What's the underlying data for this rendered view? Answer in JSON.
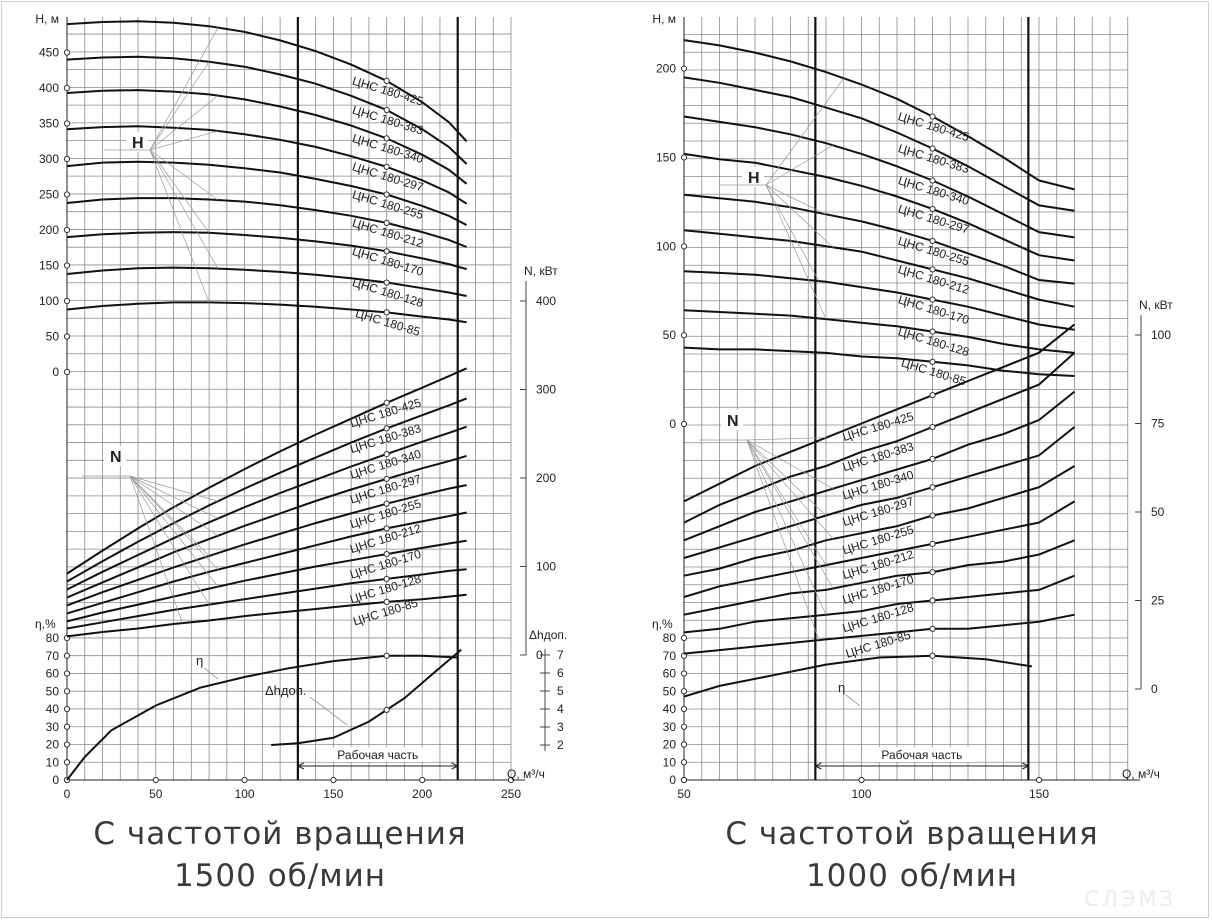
{
  "captions": {
    "left_line1": "С частотой вращения",
    "left_line2": "1500 об/мин",
    "right_line1": "С частотой вращения",
    "right_line2": "1000 об/мин"
  },
  "watermark": "СЛЭМЗ",
  "colors": {
    "grid": "#8c8c8c",
    "curve": "#111111",
    "leader": "#9a9a9a",
    "background": "#ffffff"
  },
  "chart_data": [
    {
      "type": "line",
      "speed_label": "1500 об/мин",
      "x_axis": {
        "label": "Q, м³/ч",
        "range": [
          0,
          250
        ],
        "ticks": [
          0,
          50,
          100,
          150,
          200,
          250
        ]
      },
      "head_axis": {
        "label": "H, м",
        "range": [
          0,
          500
        ],
        "ticks": [
          0,
          50,
          100,
          150,
          200,
          250,
          300,
          350,
          400,
          450
        ]
      },
      "power_axis": {
        "label": "N, кВт",
        "range": [
          0,
          400
        ],
        "ticks": [
          0,
          100,
          200,
          300,
          400
        ]
      },
      "eff_axis": {
        "label": "η,%",
        "range": [
          0,
          80
        ],
        "ticks": [
          0,
          10,
          20,
          30,
          40,
          50,
          60,
          70,
          80
        ]
      },
      "npsh_axis": {
        "label": "Δhдоп.",
        "ticks": [
          2,
          3,
          4,
          5,
          6,
          7
        ]
      },
      "group_labels": {
        "head": "H",
        "power": "N",
        "efficiency": "η",
        "npsh": "Δhдоп."
      },
      "working_zone": {
        "label": "Рабочая часть",
        "q_range": [
          130,
          220
        ]
      },
      "x": [
        0,
        20,
        40,
        60,
        80,
        100,
        120,
        140,
        160,
        180,
        200,
        215,
        225
      ],
      "head_series": [
        {
          "name": "ЦНС 180-425",
          "values": [
            490,
            493,
            494,
            492,
            487,
            479,
            467,
            452,
            433,
            410,
            380,
            352,
            325
          ]
        },
        {
          "name": "ЦНС 180-383",
          "values": [
            440,
            443,
            444,
            442,
            437,
            430,
            419,
            406,
            389,
            369,
            342,
            317,
            293
          ]
        },
        {
          "name": "ЦНС 180-340",
          "values": [
            393,
            396,
            397,
            395,
            391,
            384,
            374,
            362,
            347,
            329,
            306,
            285,
            265
          ]
        },
        {
          "name": "ЦНС 180-297",
          "values": [
            342,
            345,
            346,
            344,
            341,
            335,
            327,
            317,
            304,
            289,
            270,
            253,
            237
          ]
        },
        {
          "name": "ЦНС 180-255",
          "values": [
            290,
            295,
            296,
            295,
            292,
            287,
            281,
            272,
            262,
            250,
            234,
            220,
            207
          ]
        },
        {
          "name": "ЦНС 180-212",
          "values": [
            238,
            243,
            245,
            245,
            243,
            240,
            235,
            228,
            220,
            210,
            197,
            186,
            176
          ]
        },
        {
          "name": "ЦНС 180-170",
          "values": [
            190,
            194,
            196,
            197,
            196,
            193,
            189,
            184,
            178,
            170,
            160,
            152,
            145
          ]
        },
        {
          "name": "ЦНС 180-128",
          "values": [
            138,
            143,
            146,
            147,
            146,
            144,
            141,
            137,
            132,
            126,
            118,
            112,
            107
          ]
        },
        {
          "name": "ЦНС 180-85",
          "values": [
            88,
            93,
            96,
            98,
            98,
            97,
            95,
            92,
            88,
            84,
            78,
            74,
            70
          ]
        }
      ],
      "power_series": [
        {
          "name": "ЦНС 180-425",
          "values": [
            92,
            118,
            143,
            167,
            189,
            210,
            230,
            249,
            267,
            285,
            302,
            315,
            324
          ]
        },
        {
          "name": "ЦНС 180-383",
          "values": [
            83,
            106,
            128,
            149,
            169,
            188,
            206,
            223,
            240,
            256,
            271,
            282,
            290
          ]
        },
        {
          "name": "ЦНС 180-340",
          "values": [
            74,
            94,
            113,
            132,
            150,
            167,
            183,
            198,
            213,
            227,
            241,
            251,
            258
          ]
        },
        {
          "name": "ЦНС 180-297",
          "values": [
            65,
            82,
            99,
            116,
            131,
            146,
            160,
            174,
            187,
            199,
            211,
            219,
            225
          ]
        },
        {
          "name": "ЦНС 180-255",
          "values": [
            56,
            71,
            85,
            99,
            112,
            125,
            137,
            149,
            160,
            171,
            181,
            188,
            192
          ]
        },
        {
          "name": "ЦНС 180-212",
          "values": [
            47,
            59,
            71,
            83,
            94,
            104,
            114,
            124,
            134,
            143,
            151,
            157,
            161
          ]
        },
        {
          "name": "ЦНС 180-170",
          "values": [
            38,
            48,
            57,
            66,
            75,
            84,
            92,
            100,
            107,
            114,
            121,
            126,
            129
          ]
        },
        {
          "name": "ЦНС 180-128",
          "values": [
            30,
            37,
            44,
            51,
            57,
            63,
            69,
            75,
            81,
            86,
            91,
            95,
            97
          ]
        },
        {
          "name": "ЦНС 180-85",
          "values": [
            21,
            26,
            30,
            35,
            39,
            44,
            48,
            52,
            56,
            60,
            63,
            66,
            68
          ]
        }
      ],
      "efficiency": {
        "x": [
          0,
          10,
          25,
          50,
          75,
          100,
          125,
          150,
          180,
          200,
          220
        ],
        "values": [
          0,
          13,
          28,
          42,
          52,
          58,
          63,
          67,
          70,
          70,
          69
        ]
      },
      "npsh": {
        "x": [
          115,
          130,
          150,
          170,
          190,
          210,
          222
        ],
        "values": [
          2.0,
          2.1,
          2.4,
          3.3,
          4.6,
          6.3,
          7.3
        ]
      }
    },
    {
      "type": "line",
      "speed_label": "1000 об/мин",
      "x_axis": {
        "label": "Q, м³/ч",
        "range": [
          50,
          170
        ],
        "ticks": [
          50,
          100,
          150
        ]
      },
      "head_axis": {
        "label": "H, м",
        "range": [
          0,
          220
        ],
        "ticks": [
          0,
          50,
          100,
          150,
          200
        ]
      },
      "power_axis": {
        "label": "N, кВт",
        "range": [
          0,
          105
        ],
        "ticks": [
          0,
          25,
          50,
          75,
          100
        ]
      },
      "eff_axis": {
        "label": "η,%",
        "range": [
          0,
          80
        ],
        "ticks": [
          0,
          10,
          20,
          30,
          40,
          50,
          60,
          70,
          80
        ]
      },
      "group_labels": {
        "head": "H",
        "power": "N",
        "efficiency": "η"
      },
      "working_zone": {
        "label": "Рабочая часть",
        "q_range": [
          87,
          147
        ]
      },
      "x": [
        50,
        60,
        70,
        80,
        90,
        100,
        110,
        120,
        130,
        140,
        150,
        160
      ],
      "head_series": [
        {
          "name": "ЦНС 180-425",
          "values": [
            216,
            213,
            209,
            204,
            198,
            191,
            183,
            173,
            162,
            150,
            137,
            132
          ]
        },
        {
          "name": "ЦНС 180-383",
          "values": [
            195,
            192,
            188,
            184,
            178,
            172,
            164,
            155,
            145,
            134,
            123,
            120
          ]
        },
        {
          "name": "ЦНС 180-340",
          "values": [
            173,
            170,
            167,
            163,
            158,
            152,
            145,
            137,
            128,
            118,
            108,
            105
          ]
        },
        {
          "name": "ЦНС 180-297",
          "values": [
            152,
            149,
            147,
            143,
            139,
            134,
            128,
            121,
            113,
            104,
            95,
            92
          ]
        },
        {
          "name": "ЦНС 180-255",
          "values": [
            129,
            127,
            125,
            122,
            118,
            114,
            109,
            103,
            96,
            89,
            81,
            79
          ]
        },
        {
          "name": "ЦНС 180-212",
          "values": [
            109,
            107,
            105,
            103,
            100,
            97,
            92,
            87,
            82,
            76,
            70,
            66
          ]
        },
        {
          "name": "ЦНС 180-170",
          "values": [
            86,
            85,
            84,
            82,
            80,
            77,
            74,
            70,
            66,
            61,
            56,
            53
          ]
        },
        {
          "name": "ЦНС 180-128",
          "values": [
            64,
            63,
            62,
            61,
            59,
            57,
            55,
            52,
            49,
            45,
            42,
            40
          ]
        },
        {
          "name": "ЦНС 180-85",
          "values": [
            43,
            42,
            42,
            41,
            40,
            38,
            37,
            35,
            33,
            30,
            28,
            27
          ]
        }
      ],
      "power_series": [
        {
          "name": "ЦНС 180-425",
          "values": [
            53,
            58,
            63,
            67,
            71,
            75,
            79,
            83,
            87,
            91,
            95,
            103
          ]
        },
        {
          "name": "ЦНС 180-383",
          "values": [
            47,
            52,
            56,
            60,
            63,
            67,
            70,
            74,
            78,
            82,
            86,
            95
          ]
        },
        {
          "name": "ЦНС 180-340",
          "values": [
            42,
            46,
            50,
            53,
            56,
            59,
            62,
            65,
            69,
            72,
            76,
            84
          ]
        },
        {
          "name": "ЦНС 180-297",
          "values": [
            37,
            40,
            43,
            46,
            49,
            52,
            54,
            57,
            60,
            63,
            66,
            74
          ]
        },
        {
          "name": "ЦНС 180-255",
          "values": [
            32,
            34,
            37,
            39,
            42,
            44,
            46,
            49,
            51,
            54,
            57,
            63
          ]
        },
        {
          "name": "ЦНС 180-212",
          "values": [
            26,
            29,
            31,
            33,
            35,
            37,
            39,
            41,
            43,
            45,
            47,
            53
          ]
        },
        {
          "name": "ЦНС 180-170",
          "values": [
            21,
            23,
            25,
            27,
            28,
            30,
            32,
            33,
            35,
            36,
            38,
            42
          ]
        },
        {
          "name": "ЦНС 180-128",
          "values": [
            16,
            17,
            19,
            20,
            21,
            22,
            24,
            25,
            26,
            27,
            28,
            32
          ]
        },
        {
          "name": "ЦНС 180-85",
          "values": [
            10,
            11,
            12,
            13,
            14,
            15,
            16,
            17,
            17,
            18,
            19,
            21
          ]
        }
      ],
      "efficiency": {
        "x": [
          50,
          60,
          75,
          90,
          105,
          120,
          135,
          148
        ],
        "values": [
          47,
          53,
          59,
          65,
          69,
          70,
          68,
          64
        ]
      }
    }
  ]
}
